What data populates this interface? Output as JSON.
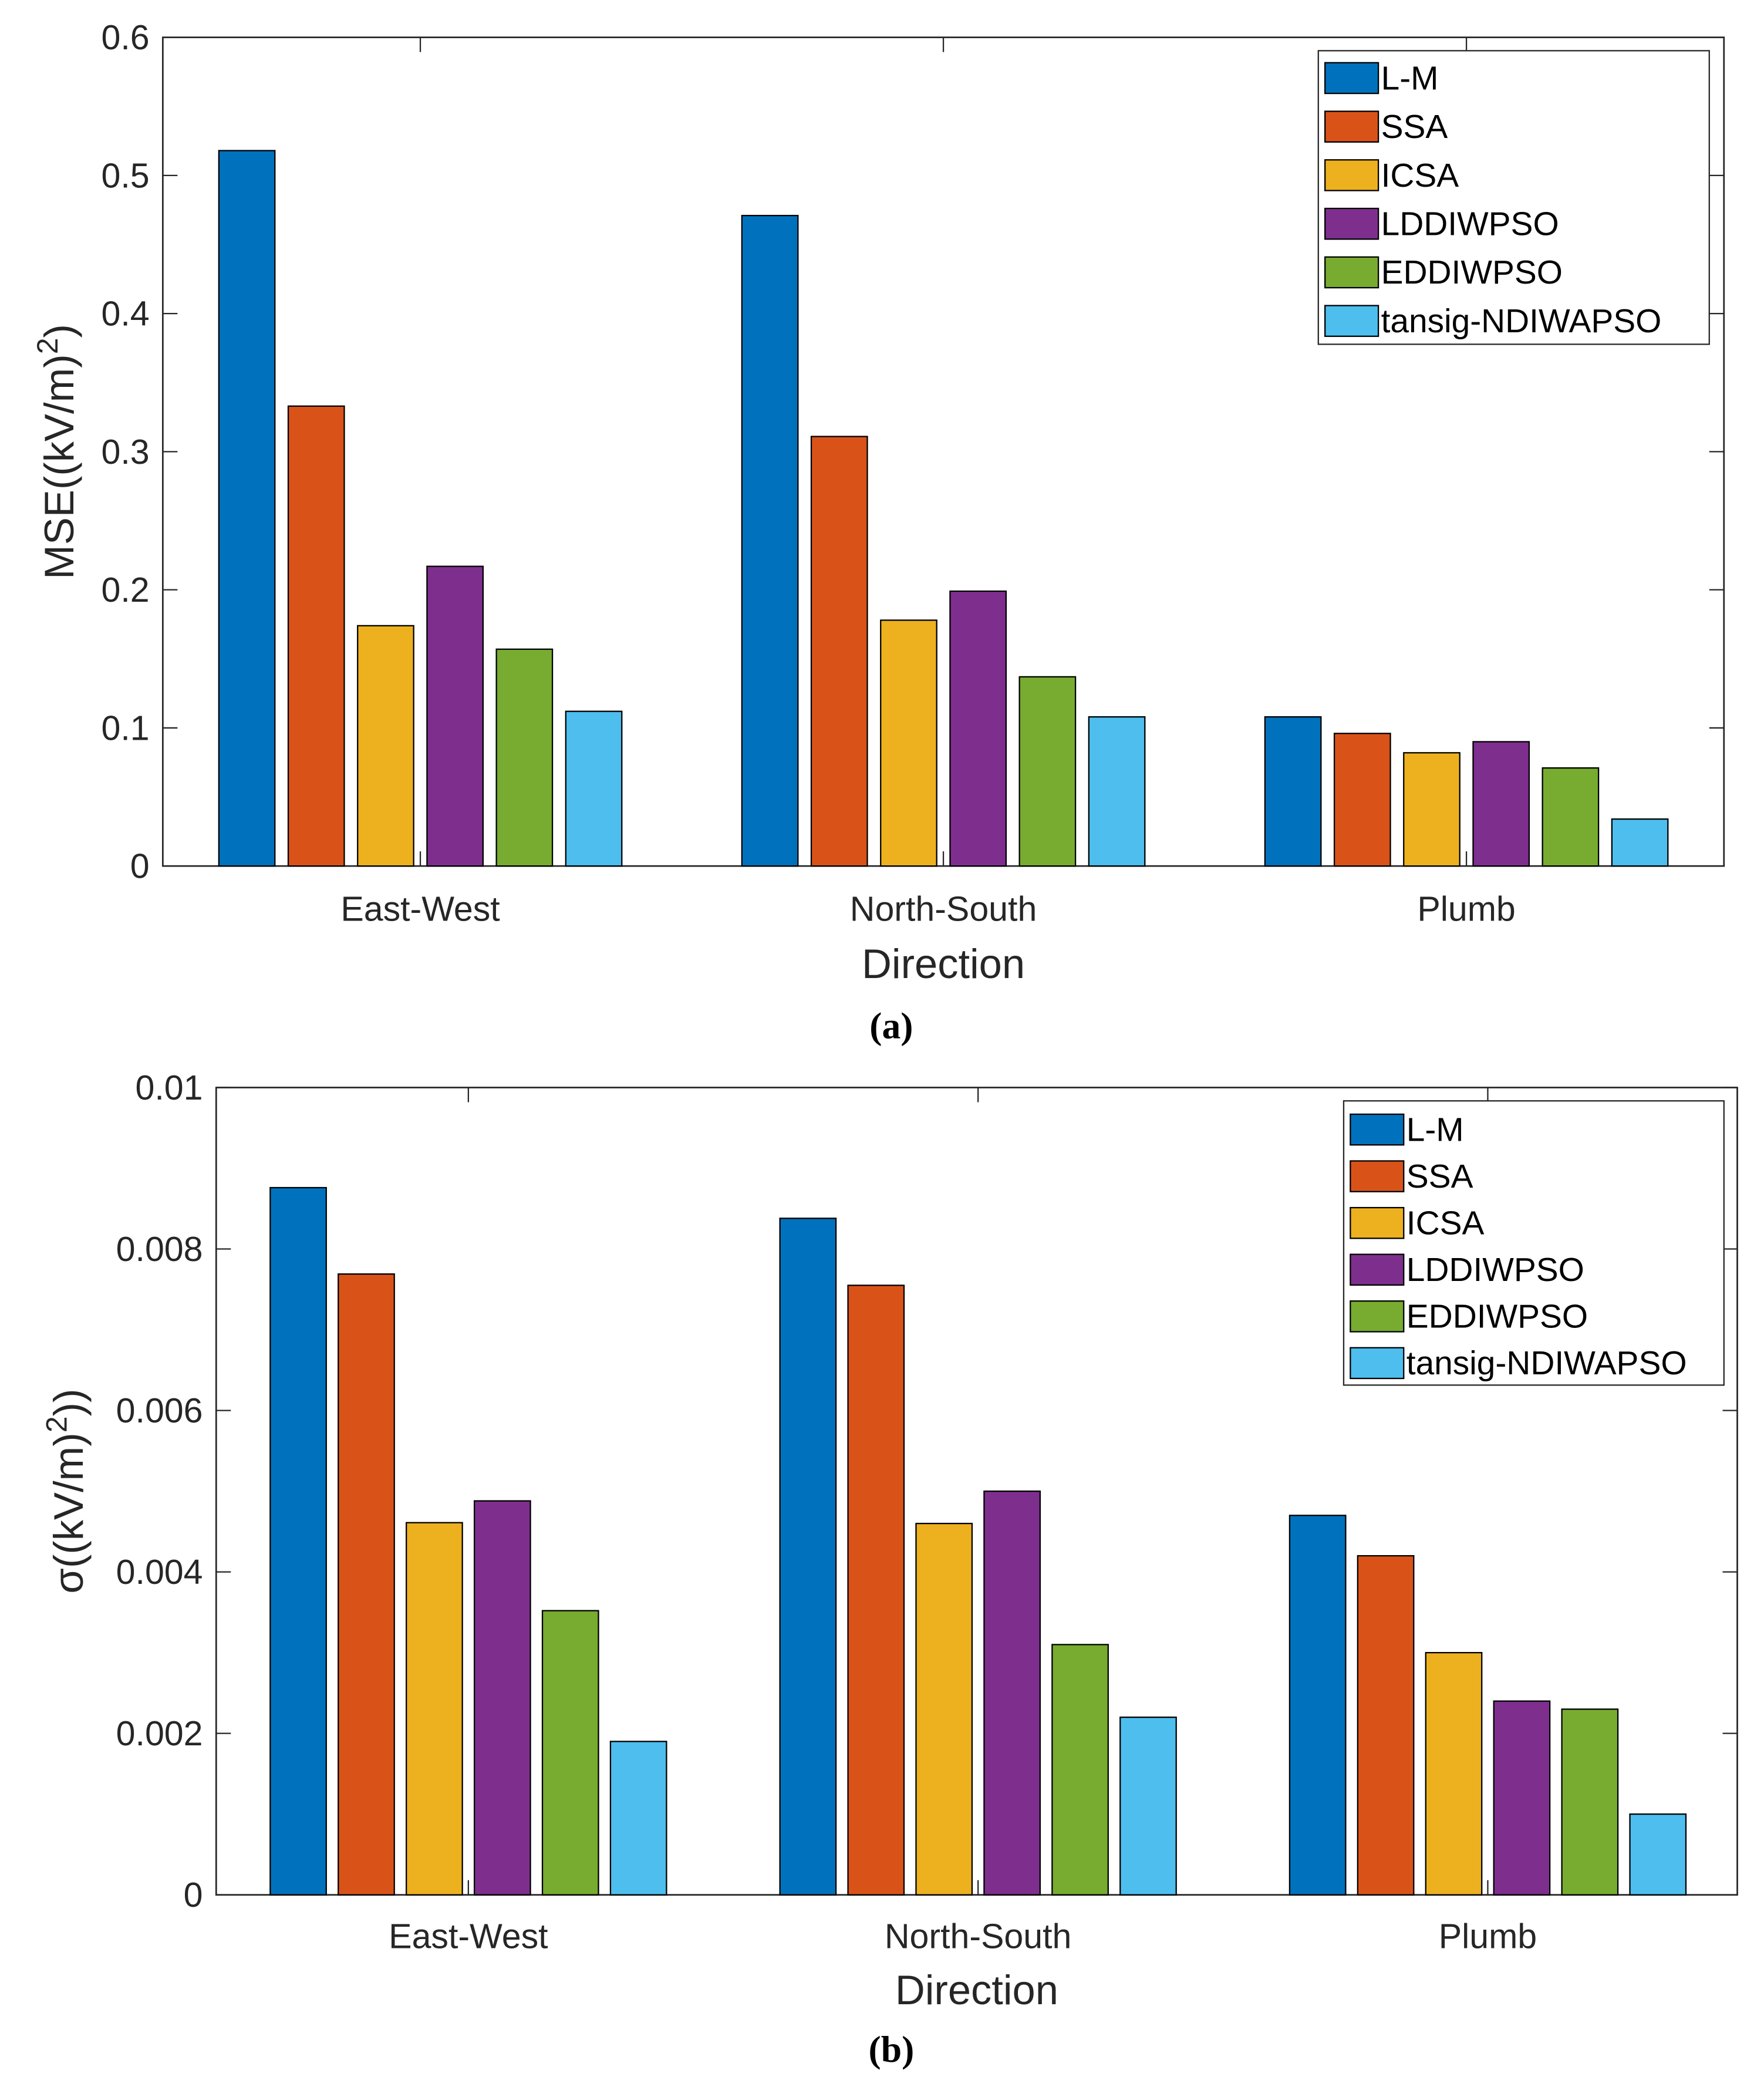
{
  "colors": [
    "#0072BD",
    "#D95319",
    "#EDB120",
    "#7E2F8E",
    "#77AC30",
    "#4DBEEE"
  ],
  "chart_data": [
    {
      "type": "bar",
      "caption": "(a)",
      "categories": [
        "East-West",
        "North-South",
        "Plumb"
      ],
      "xlabel": "Direction",
      "ylabel": {
        "prefix": "MSE((kV/m)",
        "sup": "2",
        "suffix": ")"
      },
      "ylim": [
        0,
        0.6
      ],
      "yticks": [
        "0",
        "0.1",
        "0.2",
        "0.3",
        "0.4",
        "0.5",
        "0.6"
      ],
      "legend_position": "top-right",
      "series": [
        {
          "name": "L-M",
          "values": [
            0.518,
            0.471,
            0.108
          ]
        },
        {
          "name": "SSA",
          "values": [
            0.333,
            0.311,
            0.096
          ]
        },
        {
          "name": "ICSA",
          "values": [
            0.174,
            0.178,
            0.082
          ]
        },
        {
          "name": "LDDIWPSO",
          "values": [
            0.217,
            0.199,
            0.09
          ]
        },
        {
          "name": "EDDIWPSO",
          "values": [
            0.157,
            0.137,
            0.071
          ]
        },
        {
          "name": "tansig-NDIWAPSO",
          "values": [
            0.112,
            0.108,
            0.034
          ]
        }
      ]
    },
    {
      "type": "bar",
      "caption": "(b)",
      "categories": [
        "East-West",
        "North-South",
        "Plumb"
      ],
      "xlabel": "Direction",
      "ylabel": {
        "prefix": "σ((kV/m)",
        "sup": "2",
        "suffix": "))"
      },
      "ylim": [
        0,
        0.01
      ],
      "yticks": [
        "0",
        "0.002",
        "0.004",
        "0.006",
        "0.008",
        "0.01"
      ],
      "legend_position": "top-right",
      "series": [
        {
          "name": "L-M",
          "values": [
            0.00876,
            0.00838,
            0.0047
          ]
        },
        {
          "name": "SSA",
          "values": [
            0.00769,
            0.00755,
            0.0042
          ]
        },
        {
          "name": "ICSA",
          "values": [
            0.00461,
            0.0046,
            0.003
          ]
        },
        {
          "name": "LDDIWPSO",
          "values": [
            0.00488,
            0.005,
            0.0024
          ]
        },
        {
          "name": "EDDIWPSO",
          "values": [
            0.00352,
            0.0031,
            0.0023
          ]
        },
        {
          "name": "tansig-NDIWAPSO",
          "values": [
            0.0019,
            0.0022,
            0.001
          ]
        }
      ]
    }
  ]
}
